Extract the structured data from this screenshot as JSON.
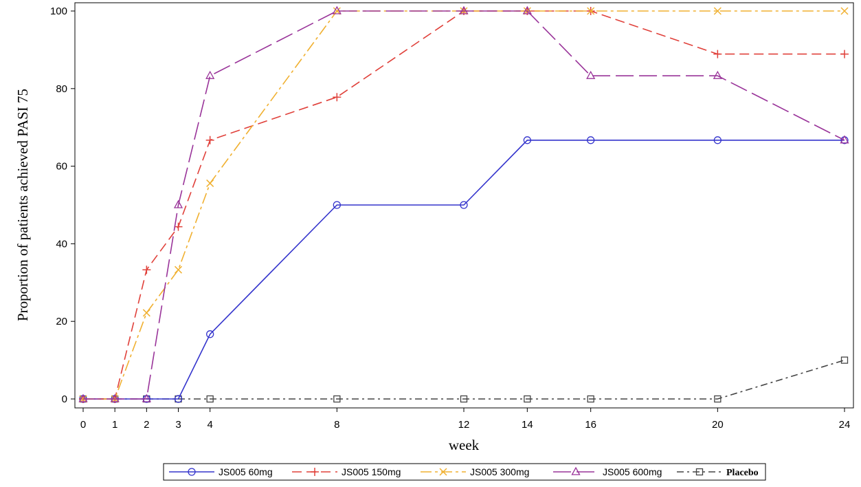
{
  "chart_data": {
    "type": "line",
    "xlabel": "week",
    "ylabel": "Proportion of patients achieved PASI 75",
    "x": [
      0,
      1,
      2,
      3,
      4,
      8,
      12,
      14,
      16,
      20,
      24
    ],
    "x_tick_labels": [
      "0",
      "1",
      "2",
      "3",
      "4",
      "8",
      "12",
      "14",
      "16",
      "20",
      "24"
    ],
    "y_ticks": [
      0,
      20,
      40,
      60,
      80,
      100
    ],
    "y_tick_labels": [
      "0",
      "20",
      "40",
      "60",
      "80",
      "100"
    ],
    "xlim": [
      0,
      24
    ],
    "ylim": [
      0,
      100
    ],
    "grid": false,
    "legend_position": "bottom",
    "series": [
      {
        "name": "JS005 60mg",
        "color": "#3333cc",
        "marker": "circle",
        "dash": "solid",
        "values": [
          0,
          0,
          0,
          0,
          16.7,
          50,
          50,
          66.7,
          66.7,
          66.7,
          66.7
        ]
      },
      {
        "name": "JS005 150mg",
        "color": "#e0403a",
        "marker": "plus",
        "dash": "dash",
        "values": [
          0,
          0,
          33.3,
          44.4,
          66.7,
          77.8,
          100,
          100,
          100,
          88.9,
          88.9
        ]
      },
      {
        "name": "JS005 300mg",
        "color": "#f0b030",
        "marker": "x",
        "dash": "dashdot",
        "values": [
          0,
          0,
          22.2,
          33.3,
          55.6,
          100,
          100,
          100,
          100,
          100,
          100
        ]
      },
      {
        "name": "JS005 600mg",
        "color": "#993399",
        "marker": "triangle",
        "dash": "longdash",
        "values": [
          0,
          0,
          0,
          50,
          83.3,
          100,
          100,
          100,
          83.3,
          83.3,
          66.7
        ]
      },
      {
        "name": "Placebo",
        "color": "#444444",
        "marker": "square",
        "dash": "dashdot2",
        "values": [
          0,
          0,
          0,
          0,
          0,
          0,
          0,
          0,
          0,
          0,
          10
        ]
      }
    ]
  }
}
